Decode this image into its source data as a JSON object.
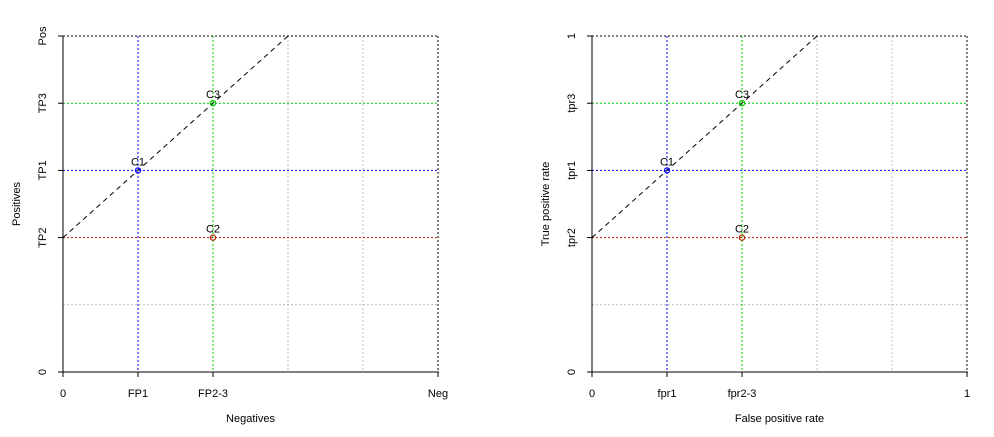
{
  "chart_data": [
    {
      "type": "scatter",
      "xlabel": "Negatives",
      "ylabel": "Positives",
      "x_ticks": [
        {
          "value": 0,
          "label": "0"
        },
        {
          "value": 1,
          "label": "FP1"
        },
        {
          "value": 2,
          "label": "FP2-3"
        },
        {
          "value": 5,
          "label": "Neg"
        }
      ],
      "y_ticks": [
        {
          "value": 0,
          "label": "0"
        },
        {
          "value": 2,
          "label": "TP2"
        },
        {
          "value": 3,
          "label": "TP1"
        },
        {
          "value": 4,
          "label": "TP3"
        },
        {
          "value": 5,
          "label": "Pos"
        }
      ],
      "xlim": [
        0,
        5
      ],
      "ylim": [
        0,
        5
      ],
      "grid": true,
      "gridlines": {
        "x": [
          3,
          4
        ],
        "y": [
          1
        ]
      },
      "points": [
        {
          "label": "C1",
          "x": 1,
          "y": 3,
          "color": "#0000ff"
        },
        {
          "label": "C2",
          "x": 2,
          "y": 2,
          "color": "#b22200"
        },
        {
          "label": "C3",
          "x": 2,
          "y": 4,
          "color": "#00cc00"
        }
      ],
      "reference_lines": [
        {
          "axis": "v",
          "value": 1,
          "color": "#0000ff"
        },
        {
          "axis": "v",
          "value": 2,
          "color": "#00cc00"
        },
        {
          "axis": "h",
          "value": 3,
          "color": "#0000ff"
        },
        {
          "axis": "h",
          "value": 2,
          "color": "#b22200"
        },
        {
          "axis": "h",
          "value": 4,
          "color": "#00cc00"
        }
      ],
      "iso_line": {
        "from": [
          0,
          2
        ],
        "to": [
          3,
          5
        ],
        "style": "dashed",
        "color": "#000000"
      }
    },
    {
      "type": "scatter",
      "xlabel": "False positive rate",
      "ylabel": "True positive rate",
      "x_ticks": [
        {
          "value": 0,
          "label": "0"
        },
        {
          "value": 0.2,
          "label": "fpr1"
        },
        {
          "value": 0.4,
          "label": "fpr2-3"
        },
        {
          "value": 1,
          "label": "1"
        }
      ],
      "y_ticks": [
        {
          "value": 0,
          "label": "0"
        },
        {
          "value": 0.4,
          "label": "tpr2"
        },
        {
          "value": 0.6,
          "label": "tpr1"
        },
        {
          "value": 0.8,
          "label": "tpr3"
        },
        {
          "value": 1,
          "label": "1"
        }
      ],
      "xlim": [
        0,
        1
      ],
      "ylim": [
        0,
        1
      ],
      "grid": true,
      "gridlines": {
        "x": [
          0.6,
          0.8
        ],
        "y": [
          0.2
        ]
      },
      "points": [
        {
          "label": "C1",
          "x": 0.2,
          "y": 0.6,
          "color": "#0000ff"
        },
        {
          "label": "C2",
          "x": 0.4,
          "y": 0.4,
          "color": "#b22200"
        },
        {
          "label": "C3",
          "x": 0.4,
          "y": 0.8,
          "color": "#00cc00"
        }
      ],
      "reference_lines": [
        {
          "axis": "v",
          "value": 0.2,
          "color": "#0000ff"
        },
        {
          "axis": "v",
          "value": 0.4,
          "color": "#00cc00"
        },
        {
          "axis": "h",
          "value": 0.6,
          "color": "#0000ff"
        },
        {
          "axis": "h",
          "value": 0.4,
          "color": "#b22200"
        },
        {
          "axis": "h",
          "value": 0.8,
          "color": "#00cc00"
        }
      ],
      "iso_line": {
        "from": [
          0,
          0.4
        ],
        "to": [
          0.6,
          1
        ],
        "style": "dashed",
        "color": "#000000"
      }
    }
  ]
}
